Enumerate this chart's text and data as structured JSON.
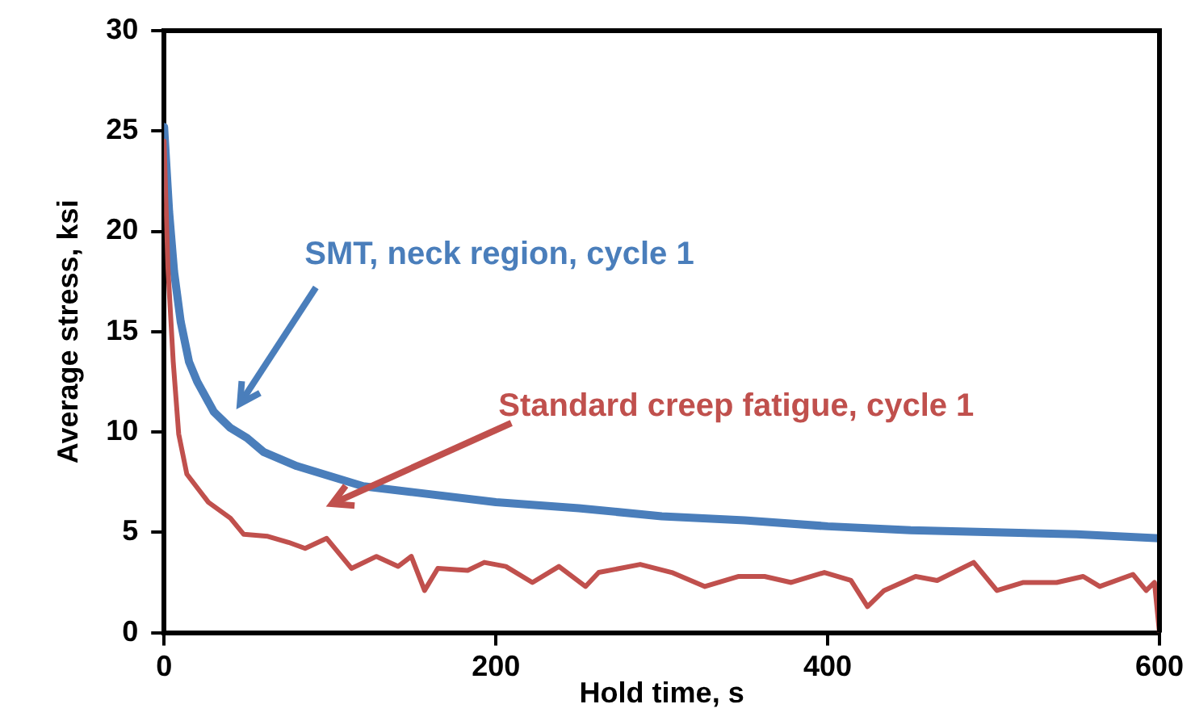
{
  "chart_data": {
    "type": "line",
    "xlabel": "Hold time, s",
    "ylabel": "Average stress, ksi",
    "xlim": [
      0,
      600
    ],
    "xticks": [
      0,
      200,
      400,
      600
    ],
    "ylim": [
      0,
      30
    ],
    "yticks": [
      0,
      5,
      10,
      15,
      20,
      25,
      30
    ],
    "grid": false,
    "legend": false,
    "marker": "none",
    "line_style": "solid",
    "series": [
      {
        "color": "#4a7ebb",
        "x": [
          0,
          3,
          6,
          10,
          15,
          20,
          30,
          40,
          50,
          60,
          80,
          100,
          120,
          150,
          200,
          250,
          300,
          350,
          400,
          450,
          500,
          550,
          600
        ],
        "values": [
          25.2,
          21,
          18,
          15.5,
          13.5,
          12.5,
          11,
          10.2,
          9.7,
          9,
          8.3,
          7.8,
          7.3,
          7,
          6.5,
          6.2,
          5.8,
          5.6,
          5.3,
          5.1,
          5,
          4.9,
          4.7
        ]
      },
      {
        "color": "#c0504d",
        "x": [
          0,
          2.3,
          5.5,
          8.8,
          13.7,
          26.7,
          40,
          48,
          62.5,
          75,
          85,
          98,
          113,
          128,
          141,
          149,
          157,
          165,
          183,
          193,
          206,
          222,
          238,
          254,
          262,
          287,
          306,
          326,
          346,
          362,
          378,
          398,
          414,
          424,
          434,
          453,
          466,
          488,
          502,
          518,
          538,
          554,
          564,
          584,
          592,
          597,
          600
        ],
        "values": [
          24.5,
          18.2,
          13.5,
          9.9,
          7.9,
          6.5,
          5.7,
          4.9,
          4.8,
          4.5,
          4.2,
          4.7,
          3.2,
          3.8,
          3.3,
          3.8,
          2.1,
          3.2,
          3.1,
          3.5,
          3.3,
          2.5,
          3.3,
          2.3,
          3,
          3.4,
          3,
          2.3,
          2.8,
          2.8,
          2.5,
          3,
          2.6,
          1.3,
          2.1,
          2.8,
          2.6,
          3.5,
          2.1,
          2.5,
          2.5,
          2.8,
          2.3,
          2.9,
          2.1,
          2.5,
          0
        ]
      }
    ],
    "annotations": [
      "SMT, neck region, cycle 1",
      "Standard creep fatigue, cycle 1"
    ]
  }
}
